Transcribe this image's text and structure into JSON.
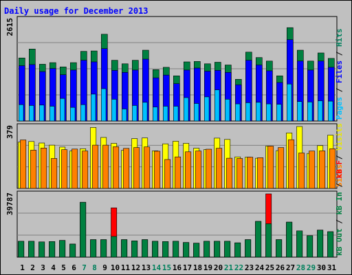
{
  "chart_data": {
    "type": "bar",
    "title": "Daily usage for December 2013",
    "categories": [
      "1",
      "2",
      "3",
      "4",
      "5",
      "6",
      "7",
      "8",
      "9",
      "10",
      "11",
      "12",
      "13",
      "14",
      "15",
      "16",
      "17",
      "18",
      "19",
      "20",
      "21",
      "22",
      "23",
      "24",
      "25",
      "26",
      "27",
      "28",
      "29",
      "30",
      "31"
    ],
    "weekend_days": [
      "7",
      "8",
      "14",
      "15",
      "21",
      "22",
      "28",
      "29"
    ],
    "panels": [
      {
        "name": "hits-files-pages",
        "ymax_label": "2615",
        "ylim": [
          0,
          2615
        ],
        "right_labels": [
          {
            "text": "Hits",
            "color": "#00805c"
          },
          {
            "text": " / ",
            "color": "#000000"
          },
          {
            "text": "Files",
            "color": "#0000ff"
          },
          {
            "text": " / ",
            "color": "#000000"
          },
          {
            "text": "Pages",
            "color": "#00c0ff"
          }
        ],
        "series": [
          {
            "name": "Hits",
            "color": "#008040",
            "values": [
              1620,
              1850,
              1460,
              1500,
              1390,
              1500,
              1790,
              1800,
              2230,
              1560,
              1470,
              1560,
              1820,
              1320,
              1380,
              1160,
              1520,
              1530,
              1470,
              1510,
              1440,
              1070,
              1770,
              1630,
              1540,
              1160,
              2400,
              1820,
              1540,
              1750,
              1610
            ]
          },
          {
            "name": "Files",
            "color": "#0000ff",
            "values": [
              1420,
              1450,
              1270,
              1350,
              1190,
              1310,
              1560,
              1520,
              1860,
              1300,
              1250,
              1310,
              1590,
              1110,
              1180,
              960,
              1310,
              1360,
              1280,
              1300,
              1250,
              930,
              1560,
              1440,
              1290,
              990,
              2090,
              1540,
              1310,
              1540,
              1380
            ]
          },
          {
            "name": "Pages",
            "color": "#00c0ff",
            "values": [
              420,
              400,
              410,
              380,
              580,
              350,
              420,
              690,
              830,
              560,
              310,
              400,
              480,
              360,
              380,
              380,
              600,
              450,
              620,
              800,
              560,
              440,
              470,
              480,
              440,
              430,
              950,
              500,
              490,
              520,
              510
            ]
          }
        ]
      },
      {
        "name": "visits-sites",
        "ymax_label": "379",
        "ylim": [
          0,
          379
        ],
        "right_labels": [
          {
            "text": "Visits",
            "color": "#e6e600"
          },
          {
            "text": " / ",
            "color": "#000000"
          },
          {
            "text": "Sites",
            "color": "#ff8000"
          }
        ],
        "series": [
          {
            "name": "Visits",
            "color": "#ffff00",
            "values": [
              284,
              287,
              278,
              265,
              253,
              229,
              243,
              373,
              312,
              276,
              233,
              305,
              309,
              230,
              273,
              289,
              276,
              246,
              238,
              308,
              300,
              193,
              191,
              185,
              259,
              231,
              340,
              379,
              214,
              262,
              326
            ]
          },
          {
            "name": "Sites",
            "color": "#ff8000",
            "values": [
              297,
              234,
              247,
              183,
              237,
              241,
              229,
              265,
              265,
              255,
              245,
              250,
              254,
              228,
              177,
              193,
              224,
              229,
              240,
              246,
              185,
              183,
              191,
              188,
              259,
              250,
              298,
              217,
              229,
              230,
              243
            ]
          }
        ]
      },
      {
        "name": "kbin-kbout-kbf",
        "ymax_label": "39787",
        "ylim": [
          0,
          39787
        ],
        "right_labels": [
          {
            "text": "kB F",
            "color": "#ff0000"
          },
          {
            "text": " / ",
            "color": "#000000"
          },
          {
            "text": "kB In",
            "color": "#008040"
          },
          {
            "text": " / ",
            "color": "#000000"
          },
          {
            "text": "kB Out",
            "color": "#008040"
          }
        ],
        "series": [
          {
            "name": "kB F",
            "color": "#ff0000",
            "values": [
              10000,
              10000,
              9600,
              9800,
              10500,
              8200,
              34500,
              11000,
              11000,
              31000,
              11000,
              10200,
              11000,
              10000,
              9800,
              10000,
              9200,
              8800,
              10000,
              10000,
              10000,
              9000,
              11000,
              22500,
              39787,
              11000,
              22000,
              16500,
              13500,
              17000,
              16000
            ]
          },
          {
            "name": "kB In",
            "color": "#008040",
            "values": [
              10000,
              10000,
              9600,
              9800,
              10500,
              8200,
              34500,
              11000,
              11000,
              13000,
              11000,
              10200,
              11000,
              10000,
              9800,
              10000,
              9200,
              8800,
              10000,
              10000,
              10000,
              9000,
              11000,
              22500,
              21000,
              11000,
              22000,
              16500,
              13500,
              17000,
              16000
            ]
          }
        ]
      }
    ]
  }
}
